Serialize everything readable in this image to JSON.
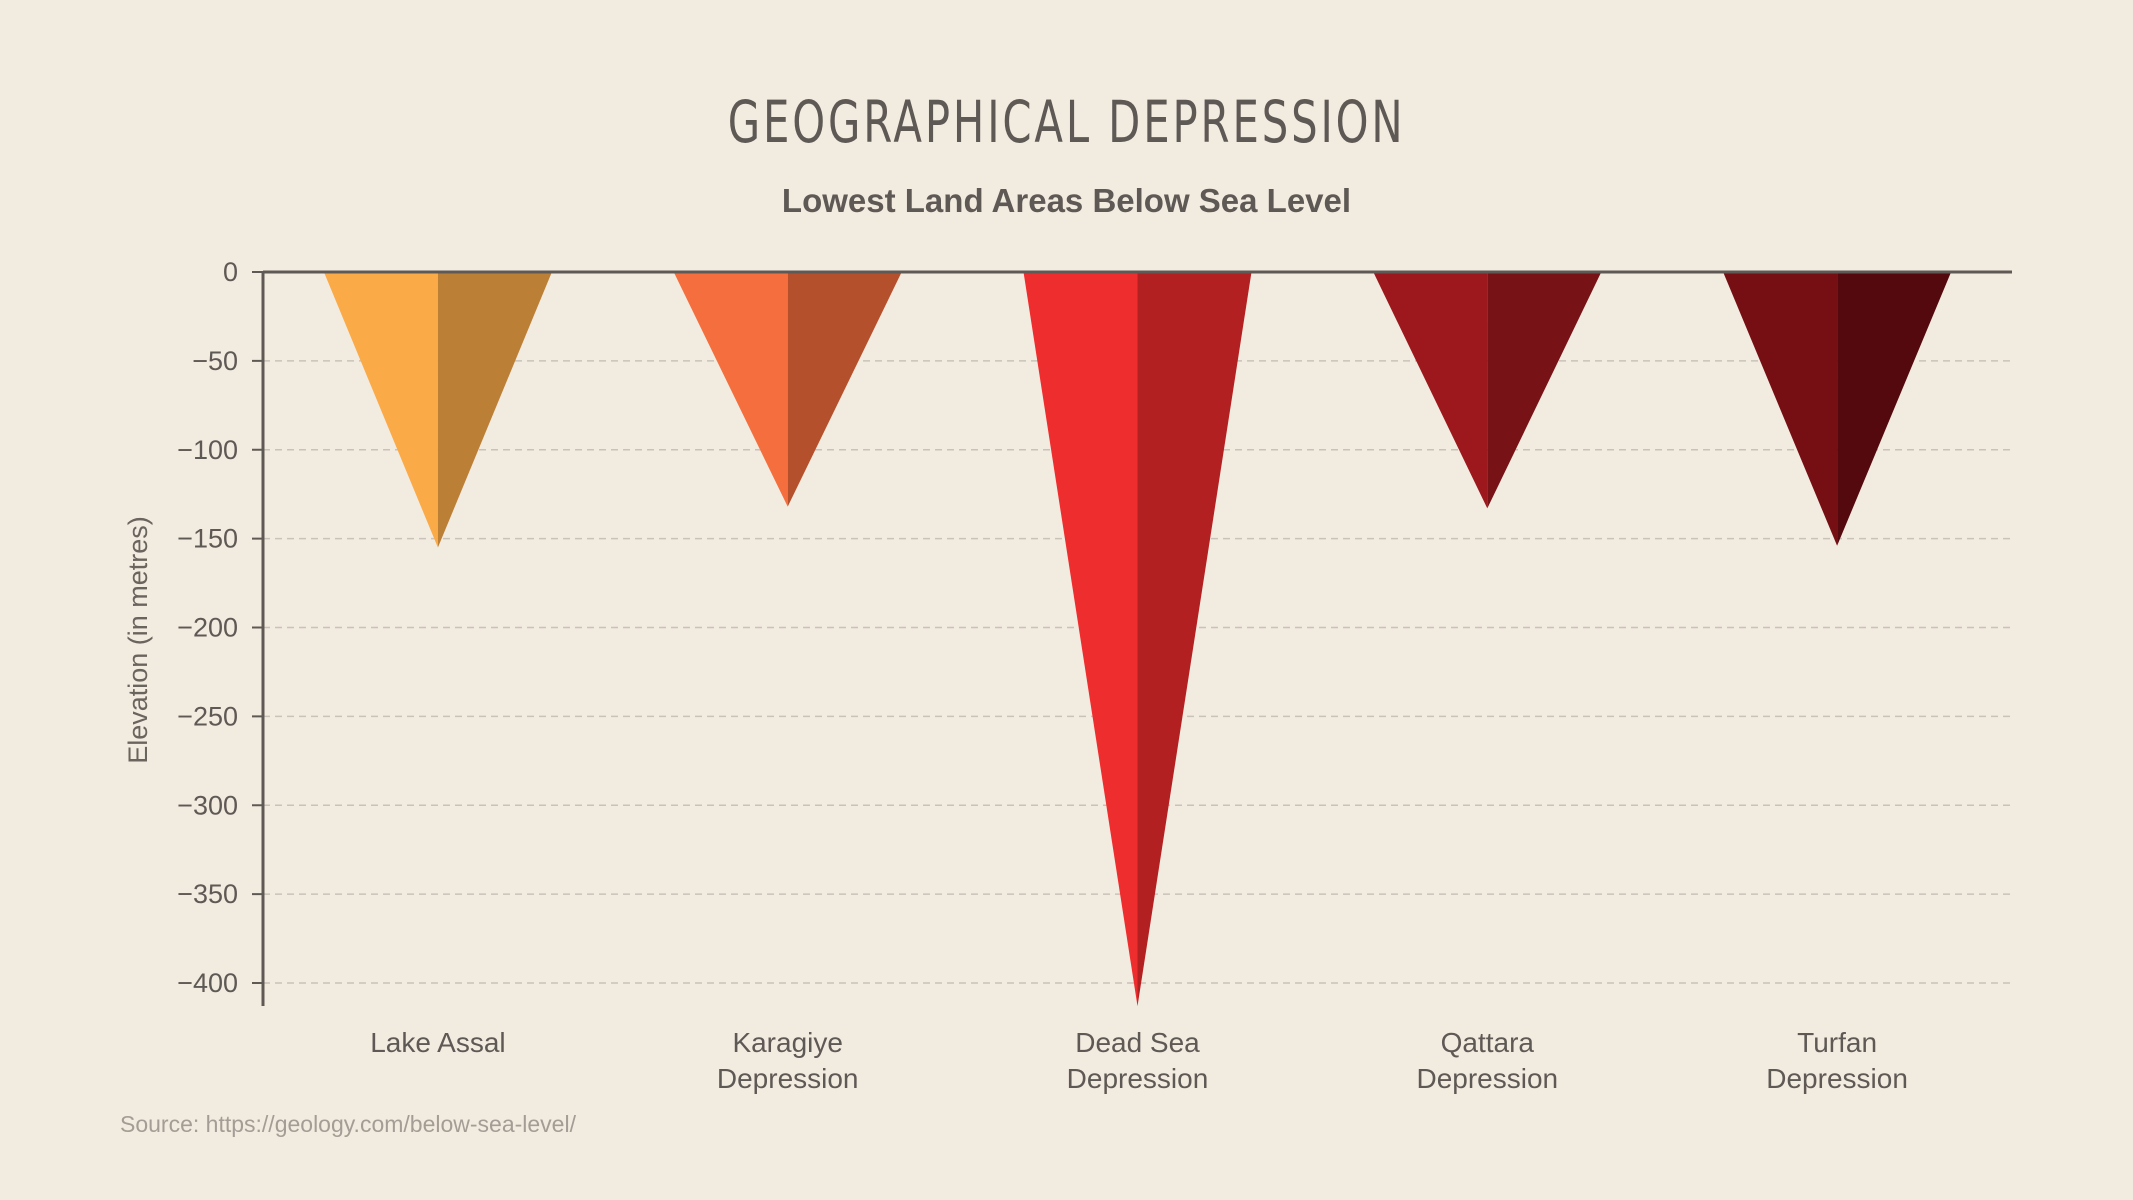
{
  "header": {
    "title": "GEOGRAPHICAL DEPRESSION",
    "subtitle": "Lowest Land Areas Below Sea Level"
  },
  "footer": {
    "source": "Source: https://geology.com/below-sea-level/"
  },
  "colors": {
    "background": "#f2ebe0",
    "axis": "#5f5955",
    "grid": "#c9c2b8",
    "text": "#5f5955",
    "source_text": "#a39d95"
  },
  "chart_data": {
    "type": "bar",
    "style": "inverted-triangle (pyramid) bars, two-tone faces",
    "title": "GEOGRAPHICAL DEPRESSION",
    "subtitle": "Lowest Land Areas Below Sea Level",
    "xlabel": "",
    "ylabel": "Elevation (in metres)",
    "ylim": [
      -415,
      0
    ],
    "yticks": [
      0,
      -50,
      -100,
      -150,
      -200,
      -250,
      -300,
      -350,
      -400
    ],
    "ytick_labels": [
      "0",
      "−50",
      "−100",
      "−150",
      "−200",
      "−250",
      "−300",
      "−350",
      "−400"
    ],
    "grid": "horizontal dashed",
    "legend": "none",
    "categories": [
      "Lake Assal",
      "Karagiye Depression",
      "Dead Sea Depression",
      "Qattara Depression",
      "Turfan Depression"
    ],
    "category_lines": [
      [
        "Lake Assal"
      ],
      [
        "Karagiye",
        "Depression"
      ],
      [
        "Dead Sea",
        "Depression"
      ],
      [
        "Qattara",
        "Depression"
      ],
      [
        "Turfan",
        "Depression"
      ]
    ],
    "values": [
      -155,
      -132,
      -413,
      -133,
      -154
    ],
    "bar_colors": [
      {
        "light": "#fbaa48",
        "dark": "#bc7f36"
      },
      {
        "light": "#f46f3d",
        "dark": "#b5502c"
      },
      {
        "light": "#ee2e2e",
        "dark": "#b22022"
      },
      {
        "light": "#9c181c",
        "dark": "#771216"
      },
      {
        "light": "#760f13",
        "dark": "#53090d"
      }
    ],
    "source": "Source: https://geology.com/below-sea-level/"
  }
}
